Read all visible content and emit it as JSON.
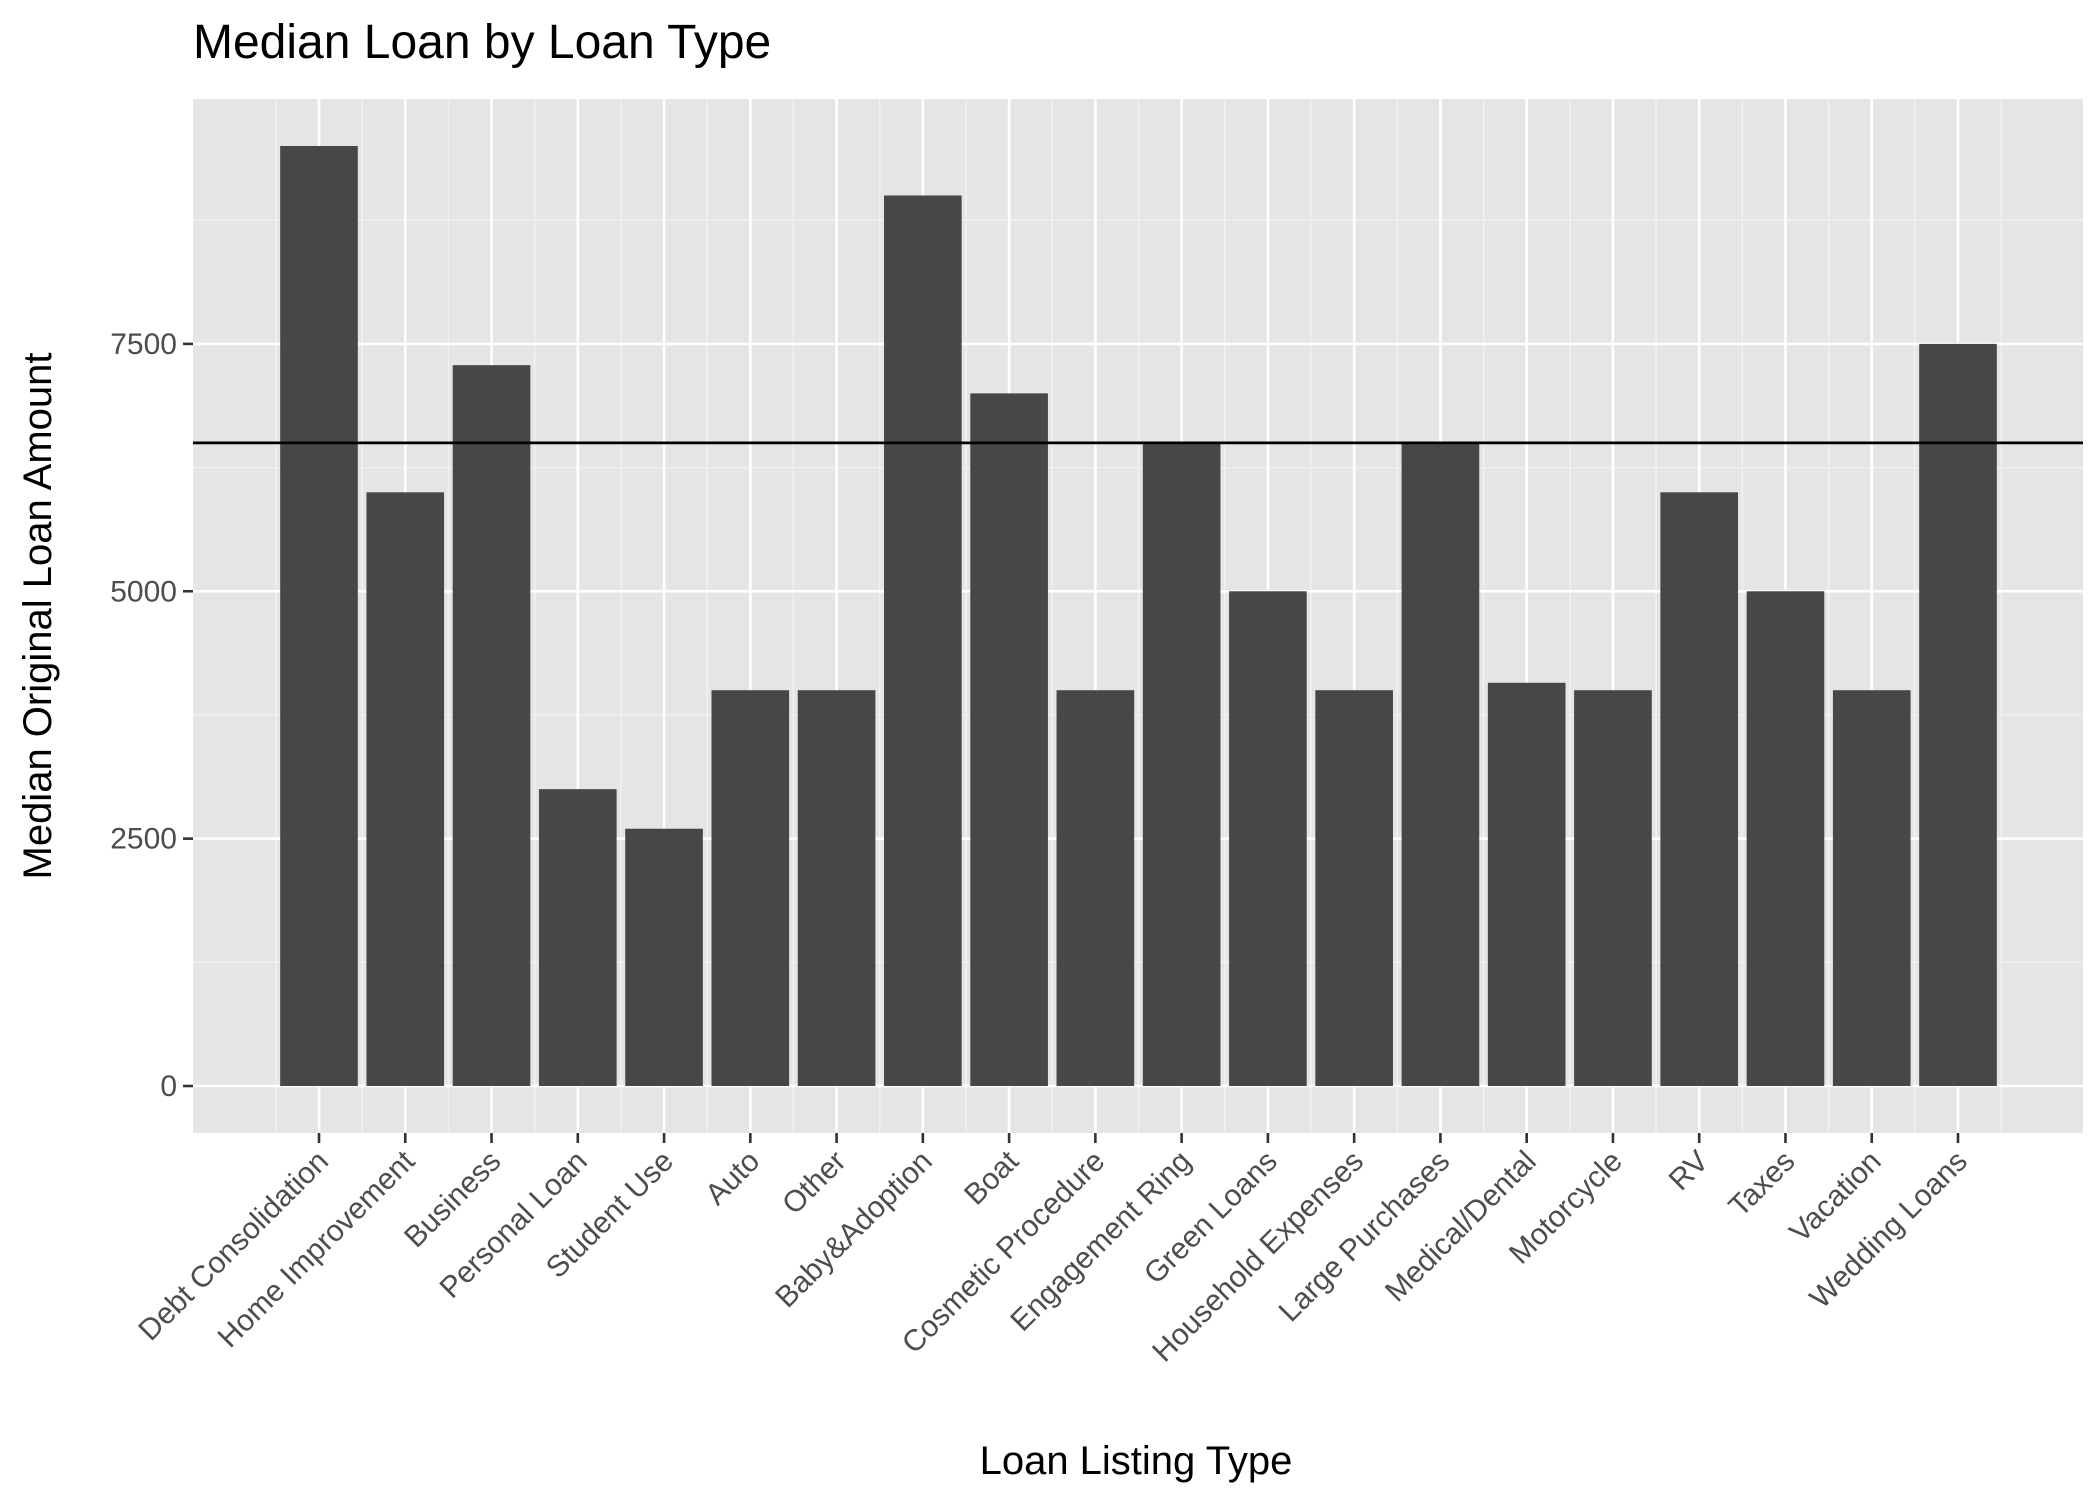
{
  "chart_data": {
    "type": "bar",
    "title": "Median Loan by Loan Type",
    "xlabel": "Loan Listing Type",
    "ylabel": "Median Original Loan Amount",
    "categories": [
      "Debt Consolidation",
      "Home Improvement",
      "Business",
      "Personal Loan",
      "Student Use",
      "Auto",
      "Other",
      "Baby&Adoption",
      "Boat",
      "Cosmetic Procedure",
      "Engagement Ring",
      "Green Loans",
      "Household Expenses",
      "Large Purchases",
      "Medical/Dental",
      "Motorcycle",
      "RV",
      "Taxes",
      "Vacation",
      "Wedding Loans"
    ],
    "values": [
      9500,
      6000,
      7285,
      3000,
      2600,
      4000,
      4000,
      9000,
      7000,
      4000,
      6500,
      5000,
      4000,
      6500,
      4075,
      4000,
      6000,
      5000,
      4000,
      7500
    ],
    "y_ticks": [
      0,
      2500,
      5000,
      7500
    ],
    "ylim": [
      -475,
      9975
    ],
    "reference_line": {
      "y": 6500
    },
    "bar_color": "#474747",
    "panel_background": "#e5e5e5",
    "grid": true,
    "legend": "none"
  }
}
